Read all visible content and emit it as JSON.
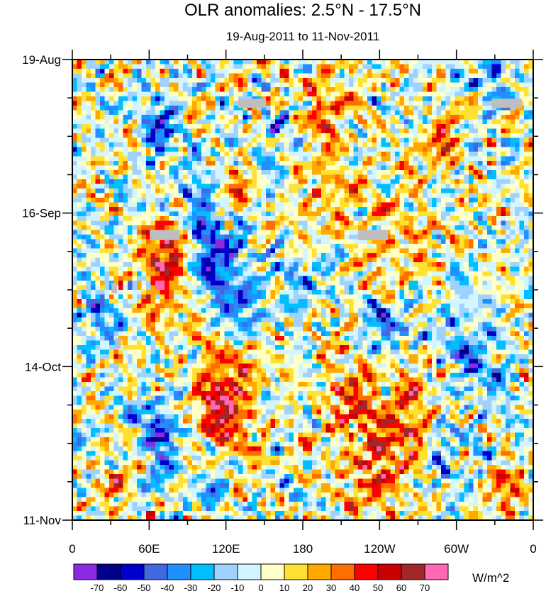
{
  "chart_data": {
    "type": "heatmap",
    "title": "OLR anomalies: 2.5°N - 17.5°N",
    "subtitle": "19-Aug-2011 to 11-Nov-2011",
    "xlabel": "",
    "ylabel": "",
    "x_ticks": [
      "0",
      "60E",
      "120E",
      "180",
      "120W",
      "60W",
      "0"
    ],
    "y_ticks": [
      "19-Aug",
      "16-Sep",
      "14-Oct",
      "11-Nov"
    ],
    "x_range_degrees_east": [
      0,
      360
    ],
    "time_range": [
      "19-Aug-2011",
      "11-Nov-2011"
    ],
    "colorbar": {
      "unit": "W/m^2",
      "levels": [
        -70,
        -60,
        -50,
        -40,
        -30,
        -20,
        -10,
        0,
        10,
        20,
        30,
        40,
        50,
        60,
        70
      ],
      "labels": [
        "-70",
        "-60",
        "-50",
        "-40",
        "-30",
        "-20",
        "-10",
        "0",
        "10",
        "20",
        "30",
        "40",
        "50",
        "60",
        "70"
      ],
      "colors": [
        "#8a2be2",
        "#00008b",
        "#0000cd",
        "#4169e1",
        "#1e90ff",
        "#00bfff",
        "#a0d2ff",
        "#d2f5ff",
        "#ffffc8",
        "#ffe132",
        "#ffaa00",
        "#ff6e00",
        "#ff0000",
        "#c80000",
        "#a02828",
        "#ff69b4"
      ]
    },
    "notable_features": {
      "positive_bands": [
        "180-120W mid-Oct to Nov",
        "60E-75E late Sep to Oct",
        "120E early Oct to Nov"
      ],
      "negative_bands": [
        "60E-75E late Oct",
        "100E-140E mid-Sep",
        "45E-60E late Aug"
      ]
    }
  }
}
